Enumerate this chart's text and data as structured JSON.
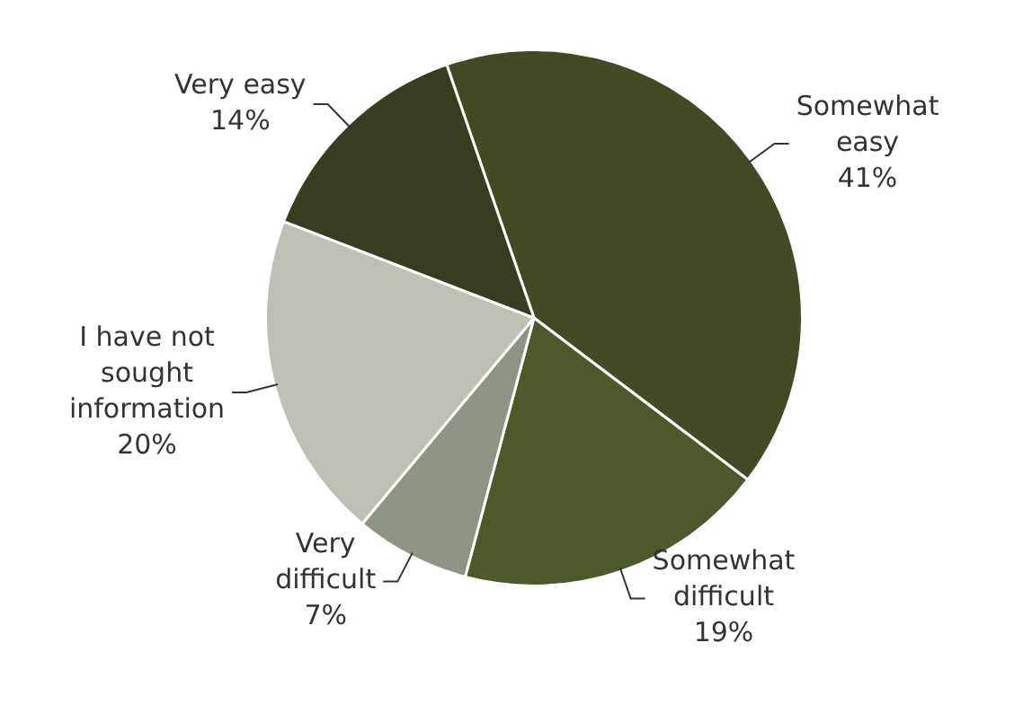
{
  "chart_data": {
    "type": "pie",
    "categories": [
      "Somewhat easy",
      "Somewhat difficult",
      "Very difficult",
      "I have not sought information",
      "Very easy"
    ],
    "values": [
      41,
      19,
      7,
      20,
      14
    ],
    "colors": [
      "#434b26",
      "#4b5a28",
      "#8e9484",
      "#bcc0b5",
      "#363d20"
    ],
    "value_labels": [
      "41%",
      "19%",
      "7%",
      "20%",
      "14%"
    ],
    "legend": false
  }
}
